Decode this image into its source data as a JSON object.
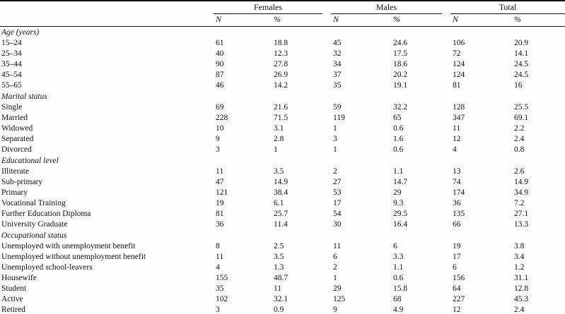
{
  "table": {
    "groups": [
      "Females",
      "Males",
      "Total"
    ],
    "subheaders": {
      "n": "N",
      "pct": "%"
    },
    "sections": [
      {
        "title": "Age (years)",
        "rows": [
          {
            "label": "15–24",
            "values": [
              "61",
              "18.8",
              "45",
              "24.6",
              "106",
              "20.9"
            ]
          },
          {
            "label": "25–34",
            "values": [
              "40",
              "12.3",
              "32",
              "17.5",
              "72",
              "14.1"
            ]
          },
          {
            "label": "35–44",
            "values": [
              "90",
              "27.8",
              "34",
              "18.6",
              "124",
              "24.5"
            ]
          },
          {
            "label": "45–54",
            "values": [
              "87",
              "26.9",
              "37",
              "20.2",
              "124",
              "24.5"
            ]
          },
          {
            "label": "55–65",
            "values": [
              "46",
              "14.2",
              "35",
              "19.1",
              "81",
              "16"
            ]
          }
        ]
      },
      {
        "title": "Marital status",
        "rows": [
          {
            "label": "Single",
            "values": [
              "69",
              "21.6",
              "59",
              "32.2",
              "128",
              "25.5"
            ]
          },
          {
            "label": "Married",
            "values": [
              "228",
              "71.5",
              "119",
              "65",
              "347",
              "69.1"
            ]
          },
          {
            "label": "Widowed",
            "values": [
              "10",
              "3.1",
              "1",
              "0.6",
              "11",
              "2.2"
            ]
          },
          {
            "label": "Separated",
            "values": [
              "9",
              "2.8",
              "3",
              "1.6",
              "12",
              "2.4"
            ]
          },
          {
            "label": "Divorced",
            "values": [
              "3",
              "1",
              "1",
              "0.6",
              "4",
              "0.8"
            ]
          }
        ]
      },
      {
        "title": "Educational level",
        "rows": [
          {
            "label": "Illiterate",
            "values": [
              "11",
              "3.5",
              "2",
              "1.1",
              "13",
              "2.6"
            ]
          },
          {
            "label": "Sub-primary",
            "values": [
              "47",
              "14.9",
              "27",
              "14.7",
              "74",
              "14.9"
            ]
          },
          {
            "label": "Primary",
            "values": [
              "121",
              "38.4",
              "53",
              "29",
              "174",
              "34.9"
            ]
          },
          {
            "label": "Vocational Training",
            "values": [
              "19",
              "6.1",
              "17",
              "9.3",
              "36",
              "7.2"
            ]
          },
          {
            "label": "Further Education Diploma",
            "values": [
              "81",
              "25.7",
              "54",
              "29.5",
              "135",
              "27.1"
            ]
          },
          {
            "label": "University Graduate",
            "values": [
              "36",
              "11.4",
              "30",
              "16.4",
              "66",
              "13.3"
            ]
          }
        ]
      },
      {
        "title": "Occupational status",
        "rows": [
          {
            "label": "Unemployed with unemployment benefit",
            "values": [
              "8",
              "2.5",
              "11",
              "6",
              "19",
              "3.8"
            ]
          },
          {
            "label": "Unemployed without unemployment benefit",
            "values": [
              "11",
              "3.5",
              "6",
              "3.3",
              "17",
              "3.4"
            ]
          },
          {
            "label": "Unemployed school-leavers",
            "values": [
              "4",
              "1.3",
              "2",
              "1.1",
              "6",
              "1.2"
            ]
          },
          {
            "label": "Housewife",
            "values": [
              "155",
              "48.7",
              "1",
              "0.6",
              "156",
              "31.1"
            ]
          },
          {
            "label": "Student",
            "values": [
              "35",
              "11",
              "29",
              "15.8",
              "64",
              "12.8"
            ]
          },
          {
            "label": "Active",
            "values": [
              "102",
              "32.1",
              "125",
              "68",
              "227",
              "45.3"
            ]
          },
          {
            "label": "Retired",
            "values": [
              "3",
              "0.9",
              "9",
              "4.9",
              "12",
              "2.4"
            ]
          }
        ]
      }
    ]
  }
}
